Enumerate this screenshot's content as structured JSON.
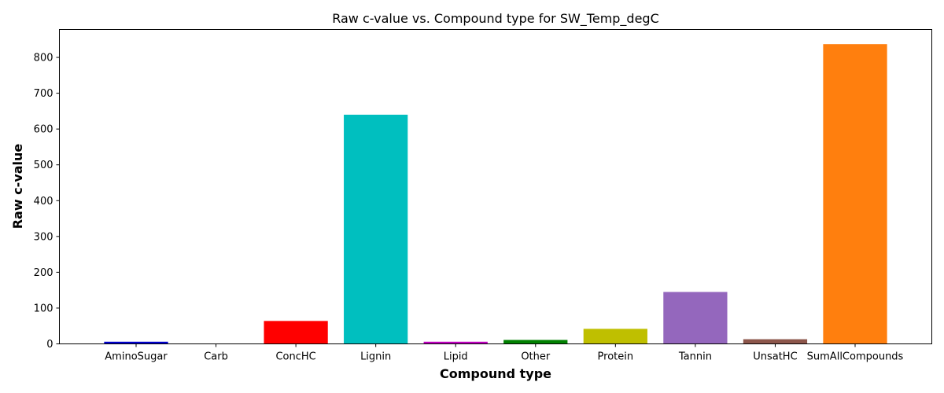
{
  "chart_data": {
    "type": "bar",
    "title": "Raw c-value vs. Compound type for SW_Temp_degC",
    "xlabel": "Compound type",
    "ylabel": "Raw c-value",
    "ylim": [
      0,
      878
    ],
    "yticks": [
      0,
      100,
      200,
      300,
      400,
      500,
      600,
      700,
      800
    ],
    "categories": [
      "AminoSugar",
      "Carb",
      "ConcHC",
      "Lignin",
      "Lipid",
      "Other",
      "Protein",
      "Tannin",
      "UnsatHC",
      "SumAllCompounds"
    ],
    "values": [
      6,
      0,
      64,
      640,
      6,
      11,
      42,
      145,
      13,
      837
    ],
    "colors": [
      "#0000cc",
      "#0000ff",
      "#ff0000",
      "#00bfbf",
      "#bf00bf",
      "#008000",
      "#bfbf00",
      "#9467bd",
      "#8c564b",
      "#ff7f0e"
    ],
    "grid": false,
    "legend": "none"
  }
}
